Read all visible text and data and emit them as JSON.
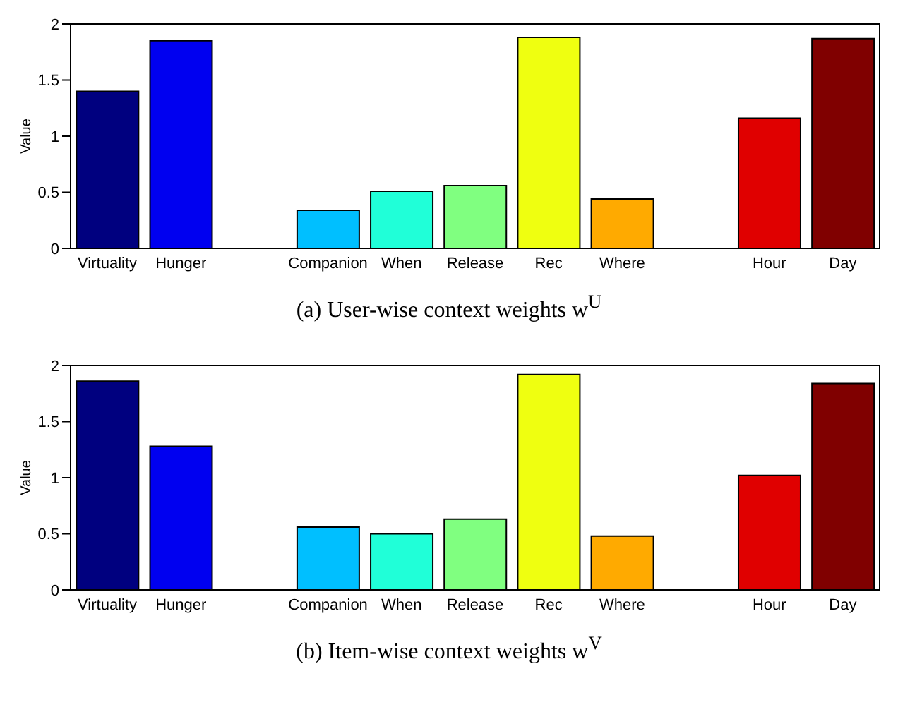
{
  "chart_data": [
    {
      "type": "bar",
      "title": "(a) User-wise context weights w$^{U}$",
      "ylabel": "Value",
      "categories": [
        "Virtuality",
        "Hunger",
        null,
        "Companion",
        "When",
        "Release",
        "Rec",
        "Where",
        null,
        "Hour",
        "Day"
      ],
      "values": [
        1.4,
        1.85,
        null,
        0.34,
        0.51,
        0.56,
        1.88,
        0.44,
        null,
        1.16,
        1.87
      ],
      "colors": [
        "#00007f",
        "#0000f0",
        "#ffffff",
        "#00bfff",
        "#20ffd8",
        "#80ff80",
        "#efff10",
        "#ffaa00",
        "#ffffff",
        "#e00000",
        "#800000"
      ],
      "ylim": [
        0,
        2
      ],
      "yticks": [
        0,
        0.5,
        1,
        1.5,
        2
      ],
      "grid": false,
      "legend": false
    },
    {
      "type": "bar",
      "title": "(b) Item-wise context weights w$^{V}$",
      "ylabel": "Value",
      "categories": [
        "Virtuality",
        "Hunger",
        null,
        "Companion",
        "When",
        "Release",
        "Rec",
        "Where",
        null,
        "Hour",
        "Day"
      ],
      "values": [
        1.86,
        1.28,
        null,
        0.56,
        0.5,
        0.63,
        1.92,
        0.48,
        null,
        1.02,
        1.84
      ],
      "colors": [
        "#00007f",
        "#0000f0",
        "#ffffff",
        "#00bfff",
        "#20ffd8",
        "#80ff80",
        "#efff10",
        "#ffaa00",
        "#ffffff",
        "#e00000",
        "#800000"
      ],
      "ylim": [
        0,
        2
      ],
      "yticks": [
        0,
        0.5,
        1,
        1.5,
        2
      ],
      "grid": false,
      "legend": false
    }
  ]
}
